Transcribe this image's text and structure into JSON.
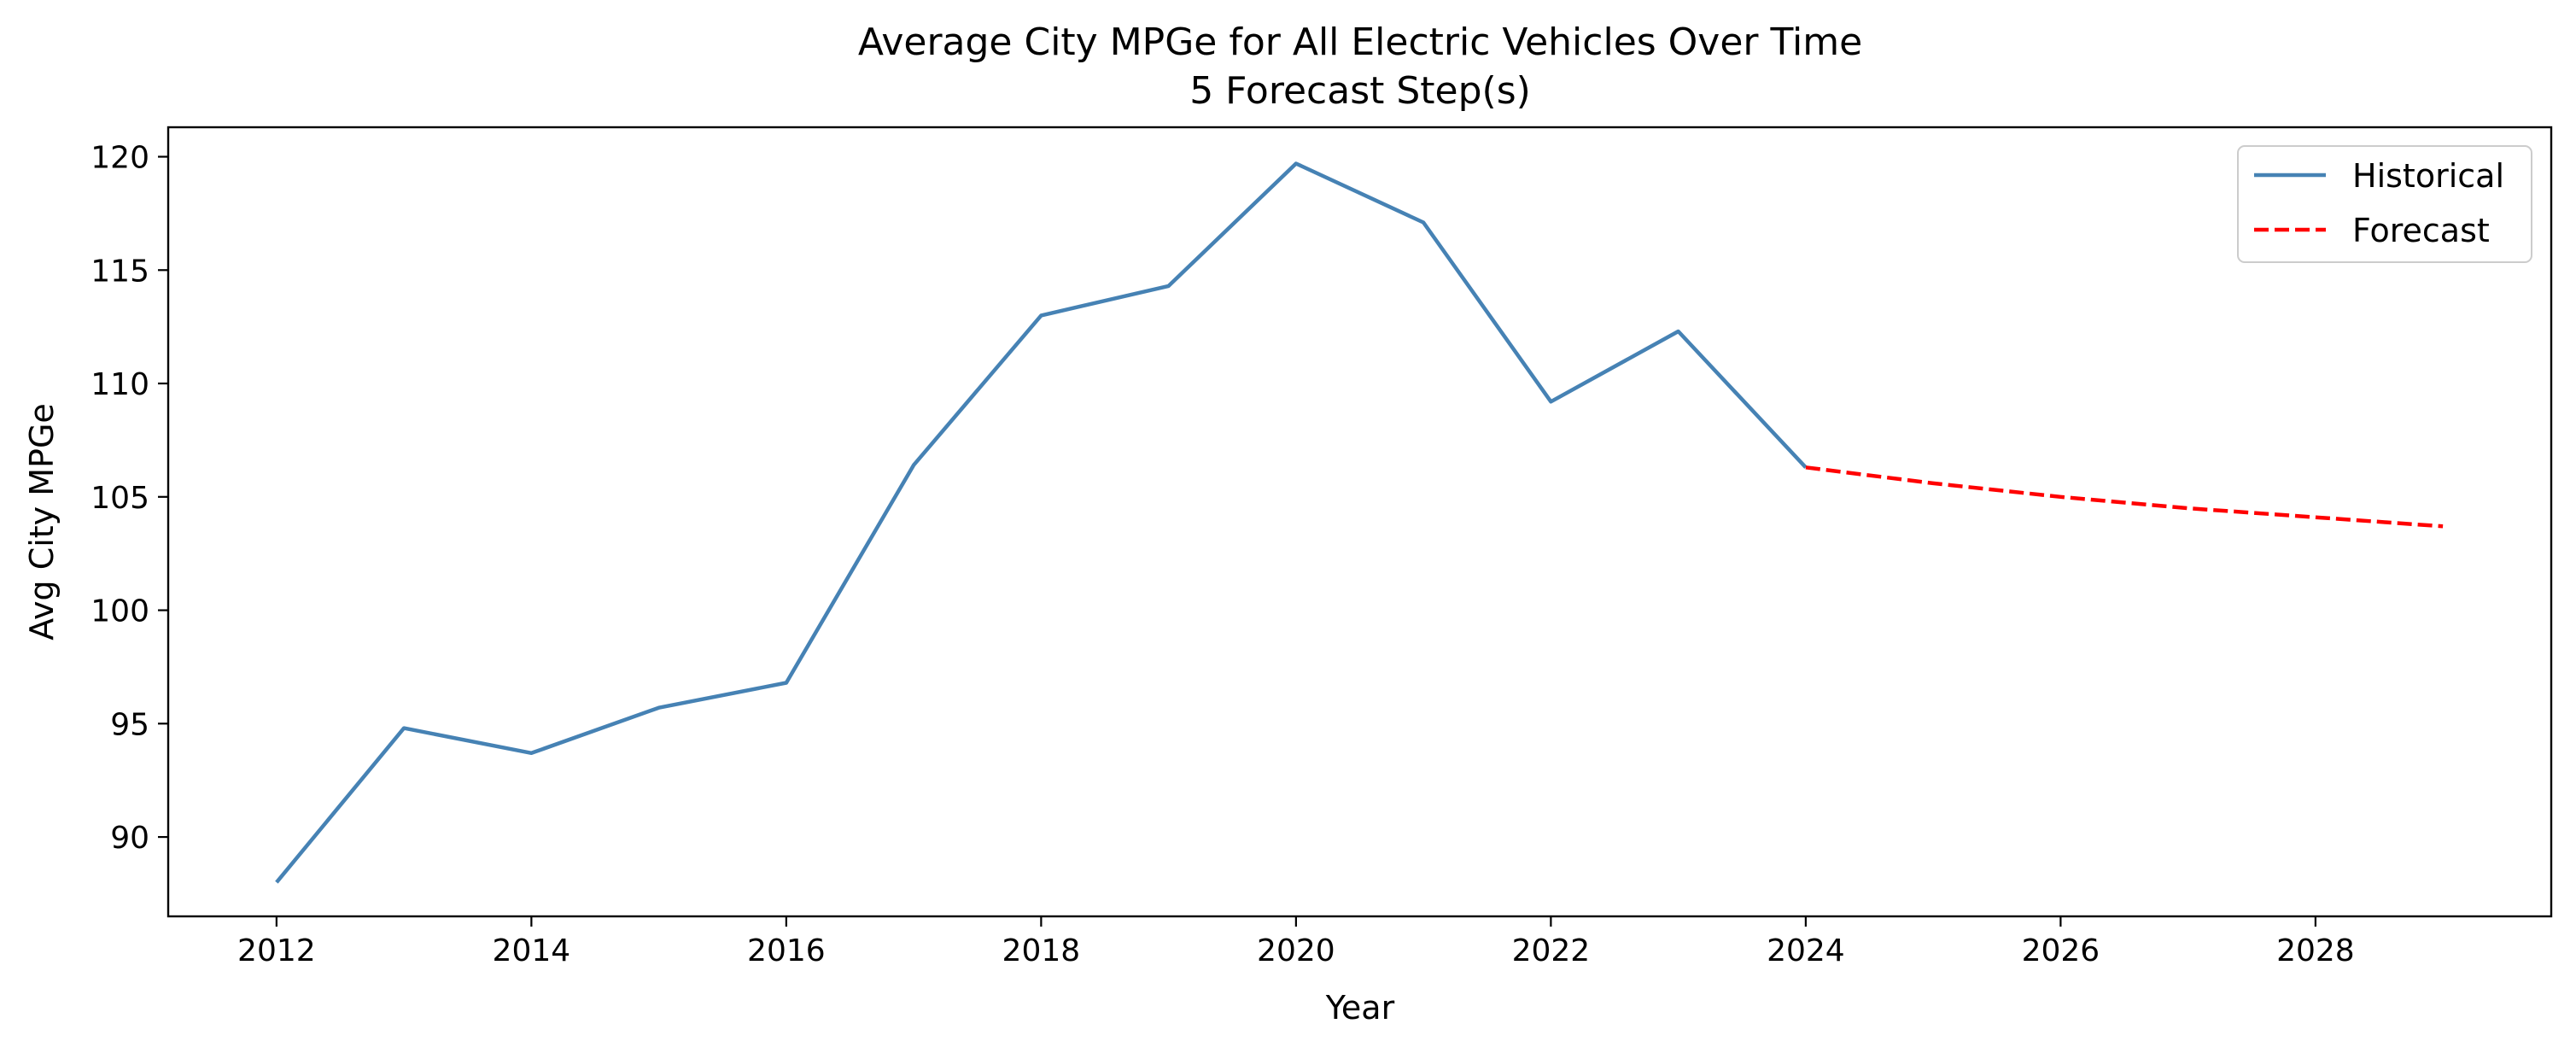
{
  "chart_data": {
    "type": "line",
    "title": "Average City MPGe for All Electric Vehicles Over Time",
    "subtitle": "5 Forecast Step(s)",
    "xlabel": "Year",
    "ylabel": "Avg City MPGe",
    "xlim": [
      2011.15,
      2029.85
    ],
    "ylim": [
      86.5,
      121.3
    ],
    "xticks": [
      2012,
      2014,
      2016,
      2018,
      2020,
      2022,
      2024,
      2026,
      2028
    ],
    "yticks": [
      90,
      95,
      100,
      105,
      110,
      115,
      120
    ],
    "grid": false,
    "legend_position": "top-right",
    "series": [
      {
        "name": "Historical",
        "style": "solid",
        "color": "#4682b4",
        "x": [
          2012,
          2013,
          2014,
          2015,
          2016,
          2017,
          2018,
          2019,
          2020,
          2021,
          2022,
          2023,
          2024
        ],
        "y": [
          88.0,
          94.8,
          93.7,
          95.7,
          96.8,
          106.4,
          113.0,
          114.3,
          119.7,
          117.1,
          109.2,
          112.3,
          106.3
        ]
      },
      {
        "name": "Forecast",
        "style": "dashed",
        "color": "#ff0000",
        "x": [
          2024,
          2025,
          2026,
          2027,
          2028,
          2029
        ],
        "y": [
          106.3,
          105.6,
          105.0,
          104.5,
          104.1,
          103.7
        ]
      }
    ]
  }
}
